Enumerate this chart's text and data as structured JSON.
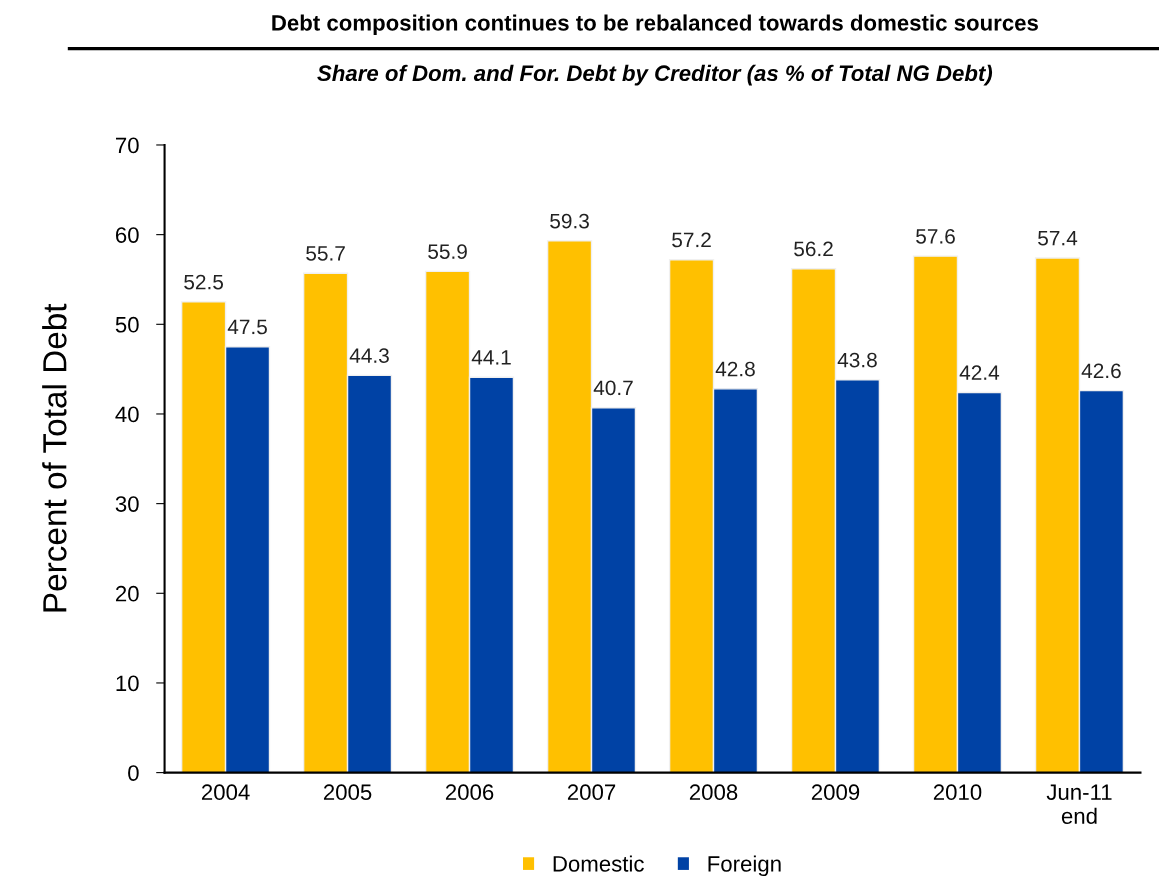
{
  "chart_data": {
    "type": "bar",
    "title": "Debt composition continues to be rebalanced towards domestic sources",
    "subtitle": "Share of Dom. and For. Debt by Creditor (as % of Total NG Debt)",
    "ylabel": "Percent of Total Debt",
    "categories": [
      "2004",
      "2005",
      "2006",
      "2007",
      "2008",
      "2009",
      "2010",
      "Jun-11\nend"
    ],
    "series": [
      {
        "name": "Domestic",
        "color": "#ffc000",
        "values": [
          52.5,
          55.7,
          55.9,
          59.3,
          57.2,
          56.2,
          57.6,
          57.4
        ]
      },
      {
        "name": "Foreign",
        "color": "#0042a5",
        "values": [
          47.5,
          44.3,
          44.1,
          40.7,
          42.8,
          43.8,
          42.4,
          42.6
        ]
      }
    ],
    "ylim": [
      0,
      70
    ],
    "yticks": [
      0,
      10,
      20,
      30,
      40,
      50,
      60,
      70
    ],
    "data_labels": true,
    "grid": false,
    "legend": "bottom"
  }
}
